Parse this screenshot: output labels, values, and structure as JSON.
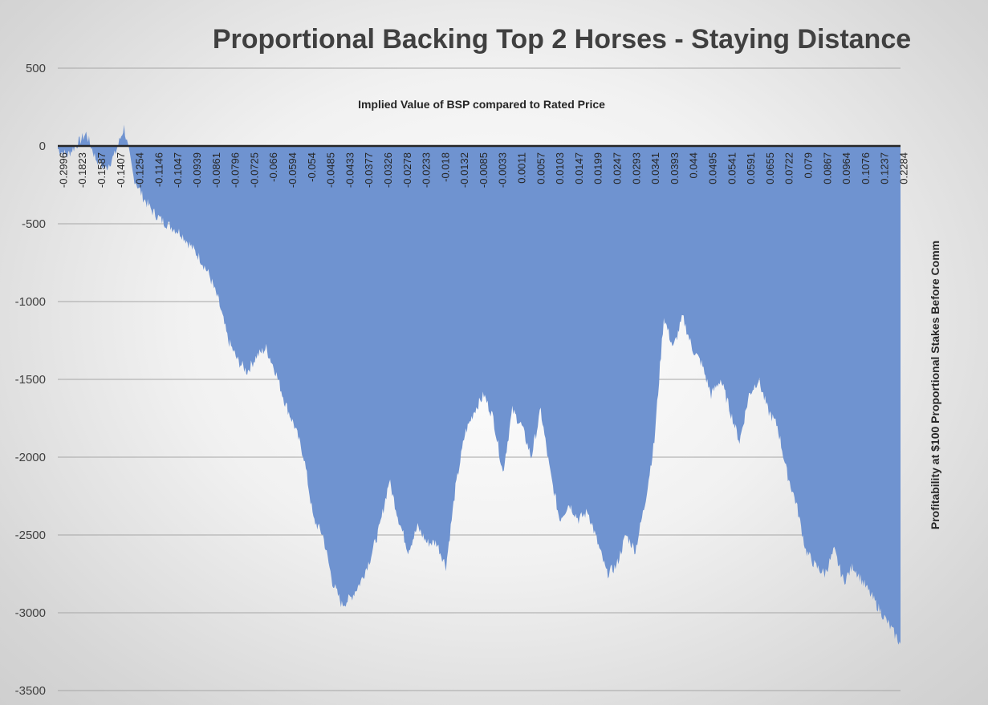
{
  "chart_data": {
    "type": "area",
    "title": "Proportional Backing Top 2 Horses - Staying Distance",
    "subtitle": "Implied Value of BSP compared to Rated Price",
    "xlabel": "",
    "ylabel": "Profitability at $100 Proportional Stakes Before Comm",
    "ylim": [
      -3500,
      500
    ],
    "y_ticks": [
      500,
      0,
      -500,
      -1000,
      -1500,
      -2000,
      -2500,
      -3000,
      -3500
    ],
    "x_tick_labels": [
      "-0.2996",
      "-0.1823",
      "-0.1587",
      "-0.1407",
      "-0.1254",
      "-0.1146",
      "-0.1047",
      "-0.0939",
      "-0.0861",
      "-0.0796",
      "-0.0725",
      "-0.066",
      "-0.0594",
      "-0.054",
      "-0.0485",
      "-0.0433",
      "-0.0377",
      "-0.0326",
      "-0.0278",
      "-0.0233",
      "-0.018",
      "-0.0132",
      "-0.0085",
      "-0.0033",
      "0.0011",
      "0.0057",
      "0.0103",
      "0.0147",
      "0.0199",
      "0.0247",
      "0.0293",
      "0.0341",
      "0.0393",
      "0.044",
      "0.0495",
      "0.0541",
      "0.0591",
      "0.0655",
      "0.0722",
      "0.079",
      "0.0867",
      "0.0964",
      "0.1076",
      "0.1237",
      "0.2284"
    ],
    "grid": true,
    "legend": "none",
    "series": [
      {
        "color": "#6f93d0",
        "x": [
          -0.2996,
          -0.25,
          -0.21,
          -0.1823,
          -0.17,
          -0.1587,
          -0.15,
          -0.1407,
          -0.133,
          -0.1254,
          -0.12,
          -0.1146,
          -0.11,
          -0.1047,
          -0.1,
          -0.0939,
          -0.09,
          -0.0861,
          -0.083,
          -0.0796,
          -0.076,
          -0.0725,
          -0.069,
          -0.066,
          -0.0627,
          -0.0594,
          -0.0567,
          -0.054,
          -0.0512,
          -0.0485,
          -0.0459,
          -0.0433,
          -0.0405,
          -0.0377,
          -0.0351,
          -0.0326,
          -0.0302,
          -0.0278,
          -0.0255,
          -0.0233,
          -0.0206,
          -0.018,
          -0.0156,
          -0.0132,
          -0.0108,
          -0.0085,
          -0.0059,
          -0.0033,
          -0.0011,
          0.0011,
          0.0034,
          0.0057,
          0.008,
          0.0103,
          0.0125,
          0.0147,
          0.0173,
          0.0199,
          0.0223,
          0.0247,
          0.027,
          0.0293,
          0.0317,
          0.0341,
          0.0367,
          0.0393,
          0.0416,
          0.044,
          0.0467,
          0.0495,
          0.0518,
          0.0541,
          0.0566,
          0.0591,
          0.0623,
          0.0655,
          0.0688,
          0.0722,
          0.0756,
          0.079,
          0.0828,
          0.0867,
          0.0915,
          0.0964,
          0.102,
          0.1076,
          0.1156,
          0.1237,
          0.176,
          0.2284
        ],
        "values": [
          -20,
          -60,
          10,
          80,
          -80,
          -150,
          -60,
          120,
          -200,
          -330,
          -420,
          -480,
          -520,
          -560,
          -640,
          -720,
          -830,
          -1000,
          -1250,
          -1380,
          -1450,
          -1350,
          -1300,
          -1450,
          -1650,
          -1800,
          -2000,
          -2400,
          -2500,
          -2800,
          -2950,
          -2900,
          -2800,
          -2650,
          -2450,
          -2150,
          -2400,
          -2600,
          -2450,
          -2550,
          -2550,
          -2700,
          -2200,
          -1850,
          -1700,
          -1600,
          -1750,
          -2100,
          -1700,
          -1800,
          -2000,
          -1700,
          -2100,
          -2400,
          -2300,
          -2400,
          -2350,
          -2550,
          -2750,
          -2700,
          -2500,
          -2600,
          -2300,
          -1900,
          -1100,
          -1300,
          -1100,
          -1300,
          -1400,
          -1600,
          -1500,
          -1700,
          -1900,
          -1600,
          -1500,
          -1700,
          -1800,
          -2100,
          -2300,
          -2600,
          -2700,
          -2750,
          -2600,
          -2800,
          -2700,
          -2800,
          -2900,
          -3000,
          -3100,
          -3200
        ]
      }
    ]
  }
}
